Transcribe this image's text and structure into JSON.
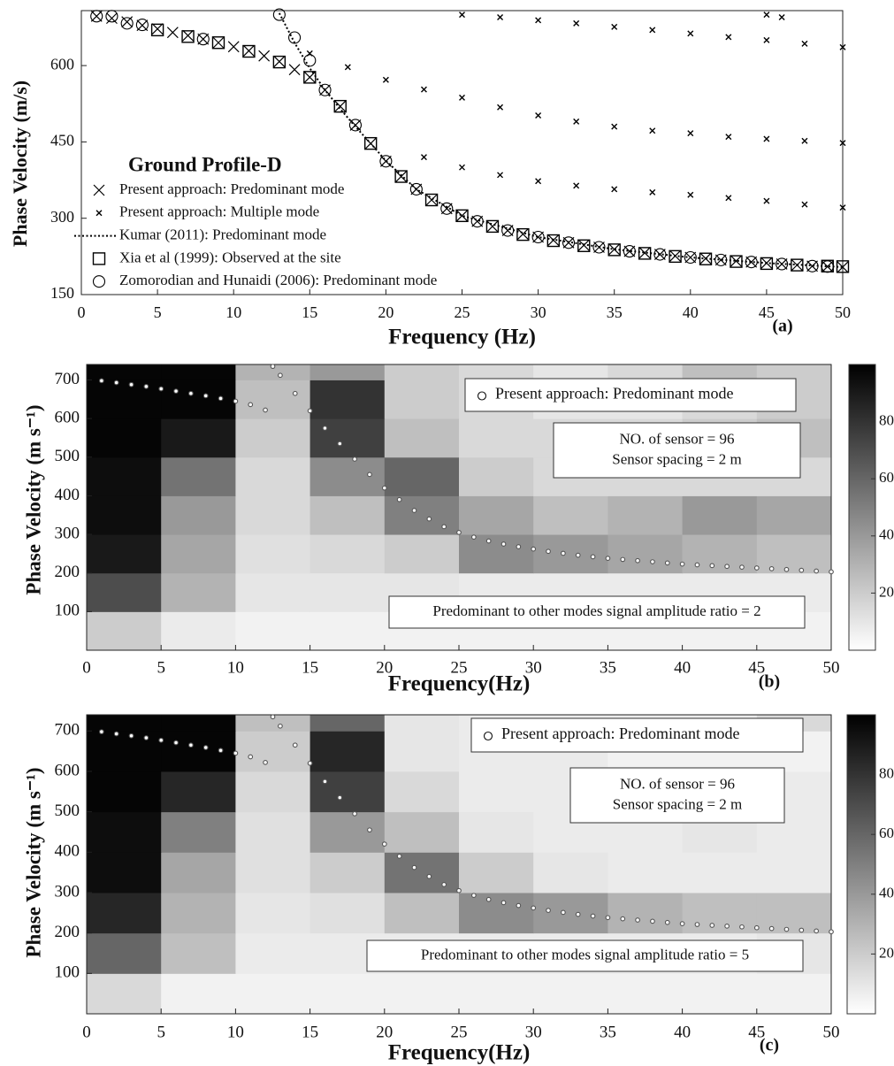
{
  "chart_data": [
    {
      "type": "scatter",
      "xlabel": "Frequency (Hz)",
      "ylabel": "Phase Velocity (m/s)",
      "legend_title": "Ground Profile-D",
      "label": "(a)",
      "xlim": [
        0,
        50
      ],
      "ylim": [
        150,
        708
      ],
      "xticks": [
        0,
        5,
        10,
        15,
        20,
        25,
        30,
        35,
        40,
        45,
        50
      ],
      "yticks": [
        150,
        300,
        450,
        600
      ],
      "series": [
        {
          "name": "Present approach: Predominant mode",
          "marker": "cross",
          "color": "#000000",
          "x": [
            1,
            2,
            3,
            4,
            5,
            6,
            7,
            8,
            9,
            10,
            11,
            12,
            13,
            14,
            15,
            16,
            17,
            18,
            19,
            20,
            21,
            22,
            23,
            24,
            25,
            26,
            27,
            28,
            29,
            30,
            31,
            32,
            33,
            34,
            35,
            36,
            37,
            38,
            39,
            40,
            41,
            42,
            43,
            44,
            45,
            46,
            47,
            48,
            49,
            50
          ],
          "values": [
            697,
            693,
            686,
            679,
            672,
            665,
            659,
            652,
            645,
            637,
            629,
            619,
            608,
            592,
            577,
            552,
            520,
            483,
            447,
            412,
            382,
            357,
            336,
            319,
            305,
            294,
            284,
            276,
            269,
            263,
            257,
            252,
            247,
            243,
            239,
            235,
            232,
            229,
            226,
            223,
            221,
            218,
            216,
            214,
            212,
            210,
            208,
            206,
            205,
            204
          ]
        },
        {
          "name": "Present approach: Multiple mode",
          "marker": "small-cross",
          "color": "#000000",
          "x": [
            15,
            17.5,
            20,
            22.5,
            25,
            27.5,
            30,
            32.5,
            35,
            37.5,
            40,
            42.5,
            45,
            47.5,
            50,
            22.5,
            25,
            27.5,
            30,
            32.5,
            35,
            37.5,
            40,
            42.5,
            45,
            47.5,
            50,
            25,
            27.5,
            30,
            32.5,
            35,
            37.5,
            40,
            42.5,
            45,
            47.5,
            50,
            45,
            46
          ],
          "values": [
            624,
            597,
            572,
            553,
            537,
            518,
            502,
            490,
            480,
            472,
            467,
            460,
            456,
            452,
            448,
            420,
            400,
            385,
            373,
            364,
            357,
            351,
            346,
            340,
            334,
            327,
            321,
            700,
            695,
            689,
            683,
            676,
            670,
            663,
            656,
            650,
            643,
            636,
            700,
            695
          ]
        },
        {
          "name": "Kumar (2011): Predominant mode",
          "marker": "dotted-line",
          "color": "#000000",
          "x": [
            13,
            14,
            15,
            16,
            17,
            18,
            19,
            20,
            22,
            25,
            30,
            35,
            40,
            45,
            50
          ],
          "values": [
            703,
            645,
            595,
            552,
            515,
            480,
            447,
            413,
            357,
            305,
            263,
            239,
            223,
            212,
            204
          ]
        },
        {
          "name": "Xia et al (1999): Observed at the site",
          "marker": "square",
          "color": "#000000",
          "x": [
            5,
            7,
            9,
            11,
            13,
            15,
            17,
            19,
            21,
            23,
            25,
            27,
            29,
            31,
            33,
            35,
            37,
            39,
            41,
            43,
            45,
            47,
            49,
            50
          ],
          "values": [
            670,
            657,
            645,
            628,
            607,
            577,
            520,
            447,
            382,
            336,
            305,
            284,
            268,
            256,
            246,
            238,
            231,
            225,
            220,
            215,
            211,
            208,
            206,
            205
          ]
        },
        {
          "name": "Zomorodian and Hunaidi (2006): Predominant mode",
          "marker": "circle",
          "color": "#000000",
          "x": [
            1,
            2,
            3,
            4,
            8,
            13,
            14,
            15,
            16,
            18,
            20,
            22,
            24,
            26,
            28,
            30,
            32,
            34,
            36,
            38,
            40,
            42,
            44,
            46,
            48,
            49
          ],
          "values": [
            697,
            697,
            683,
            680,
            652,
            700,
            655,
            610,
            552,
            483,
            412,
            357,
            319,
            294,
            276,
            263,
            252,
            243,
            235,
            229,
            223,
            218,
            214,
            210,
            206,
            205
          ]
        }
      ]
    },
    {
      "type": "heatmap",
      "xlabel": "Frequency(Hz)",
      "ylabel": "Phase Velocity (m s⁻¹)",
      "label": "(b)",
      "xlim": [
        0,
        50
      ],
      "ylim": [
        0,
        740
      ],
      "xticks": [
        0,
        5,
        10,
        15,
        20,
        25,
        30,
        35,
        40,
        45,
        50
      ],
      "yticks": [
        100,
        200,
        300,
        400,
        500,
        600,
        700
      ],
      "xbins": [
        0,
        5,
        10,
        15,
        20,
        25,
        30,
        35,
        40,
        45,
        50
      ],
      "ybins": [
        0,
        100,
        200,
        300,
        400,
        500,
        600,
        700,
        740
      ],
      "z": [
        [
          20,
          8,
          5,
          5,
          5,
          5,
          5,
          5,
          5,
          5
        ],
        [
          70,
          30,
          10,
          10,
          10,
          8,
          8,
          8,
          8,
          8
        ],
        [
          90,
          35,
          12,
          15,
          20,
          45,
          40,
          35,
          30,
          25
        ],
        [
          95,
          40,
          15,
          25,
          50,
          35,
          25,
          30,
          40,
          35
        ],
        [
          95,
          55,
          15,
          45,
          60,
          20,
          15,
          15,
          15,
          15
        ],
        [
          98,
          90,
          20,
          75,
          25,
          15,
          15,
          15,
          20,
          25
        ],
        [
          98,
          98,
          25,
          80,
          20,
          15,
          10,
          10,
          15,
          20
        ],
        [
          98,
          98,
          30,
          40,
          20,
          15,
          10,
          15,
          25,
          20
        ]
      ],
      "clim": [
        0,
        100
      ],
      "cticks": [
        20,
        40,
        60,
        80
      ],
      "series": [
        {
          "name": "Present approach: Predominant mode",
          "marker": "circle",
          "color": "#ffffff",
          "x": [
            1,
            2,
            3,
            4,
            5,
            6,
            7,
            8,
            9,
            10,
            11,
            12,
            12.5,
            13,
            14,
            15,
            16,
            17,
            18,
            19,
            20,
            21,
            22,
            23,
            24,
            25,
            26,
            27,
            28,
            29,
            30,
            31,
            32,
            33,
            34,
            35,
            36,
            37,
            38,
            39,
            40,
            41,
            42,
            43,
            44,
            45,
            46,
            47,
            48,
            49,
            50
          ],
          "values": [
            698,
            693,
            688,
            683,
            677,
            671,
            665,
            659,
            652,
            645,
            636,
            622,
            735,
            712,
            665,
            620,
            575,
            535,
            495,
            455,
            420,
            390,
            362,
            340,
            320,
            305,
            293,
            283,
            275,
            268,
            262,
            256,
            251,
            246,
            242,
            238,
            235,
            232,
            229,
            226,
            223,
            221,
            219,
            217,
            215,
            213,
            211,
            209,
            207,
            205,
            203
          ]
        }
      ],
      "annotations": [
        {
          "lines": [
            "NO. of sensor = 96",
            "Sensor spacing = 2 m"
          ]
        },
        {
          "lines": [
            "Predominant to other modes signal amplitude ratio = 2"
          ]
        }
      ]
    },
    {
      "type": "heatmap",
      "xlabel": "Frequency(Hz)",
      "ylabel": "Phase Velocity (m s⁻¹)",
      "label": "(c)",
      "xlim": [
        0,
        50
      ],
      "ylim": [
        0,
        740
      ],
      "xticks": [
        0,
        5,
        10,
        15,
        20,
        25,
        30,
        35,
        40,
        45,
        50
      ],
      "yticks": [
        100,
        200,
        300,
        400,
        500,
        600,
        700
      ],
      "xbins": [
        0,
        5,
        10,
        15,
        20,
        25,
        30,
        35,
        40,
        45,
        50
      ],
      "ybins": [
        0,
        100,
        200,
        300,
        400,
        500,
        600,
        700,
        740
      ],
      "z": [
        [
          15,
          5,
          5,
          5,
          5,
          5,
          5,
          5,
          5,
          5
        ],
        [
          60,
          25,
          8,
          8,
          8,
          8,
          8,
          8,
          8,
          10
        ],
        [
          85,
          30,
          10,
          12,
          25,
          45,
          40,
          30,
          25,
          25
        ],
        [
          95,
          35,
          12,
          20,
          55,
          20,
          10,
          8,
          8,
          8
        ],
        [
          95,
          50,
          12,
          40,
          25,
          10,
          8,
          8,
          10,
          8
        ],
        [
          98,
          85,
          15,
          75,
          15,
          8,
          8,
          8,
          8,
          8
        ],
        [
          98,
          98,
          20,
          85,
          10,
          8,
          8,
          5,
          5,
          5
        ],
        [
          98,
          98,
          25,
          60,
          10,
          8,
          8,
          8,
          8,
          15
        ]
      ],
      "clim": [
        0,
        100
      ],
      "cticks": [
        20,
        40,
        60,
        80
      ],
      "series": [
        {
          "name": "Present approach: Predominant mode",
          "marker": "circle",
          "color": "#ffffff",
          "x": [
            1,
            2,
            3,
            4,
            5,
            6,
            7,
            8,
            9,
            10,
            11,
            12,
            12.5,
            13,
            14,
            15,
            16,
            17,
            18,
            19,
            20,
            21,
            22,
            23,
            24,
            25,
            26,
            27,
            28,
            29,
            30,
            31,
            32,
            33,
            34,
            35,
            36,
            37,
            38,
            39,
            40,
            41,
            42,
            43,
            44,
            45,
            46,
            47,
            48,
            49,
            50
          ],
          "values": [
            698,
            693,
            688,
            683,
            677,
            671,
            665,
            659,
            652,
            645,
            636,
            622,
            735,
            712,
            665,
            620,
            575,
            535,
            495,
            455,
            420,
            390,
            362,
            340,
            320,
            305,
            293,
            283,
            275,
            268,
            262,
            256,
            251,
            246,
            242,
            238,
            235,
            232,
            229,
            226,
            223,
            221,
            219,
            217,
            215,
            213,
            211,
            209,
            207,
            205,
            203
          ]
        }
      ],
      "annotations": [
        {
          "lines": [
            "NO. of sensor = 96",
            "Sensor spacing = 2 m"
          ]
        },
        {
          "lines": [
            "Predominant to other modes signal amplitude ratio = 5"
          ]
        }
      ]
    }
  ]
}
